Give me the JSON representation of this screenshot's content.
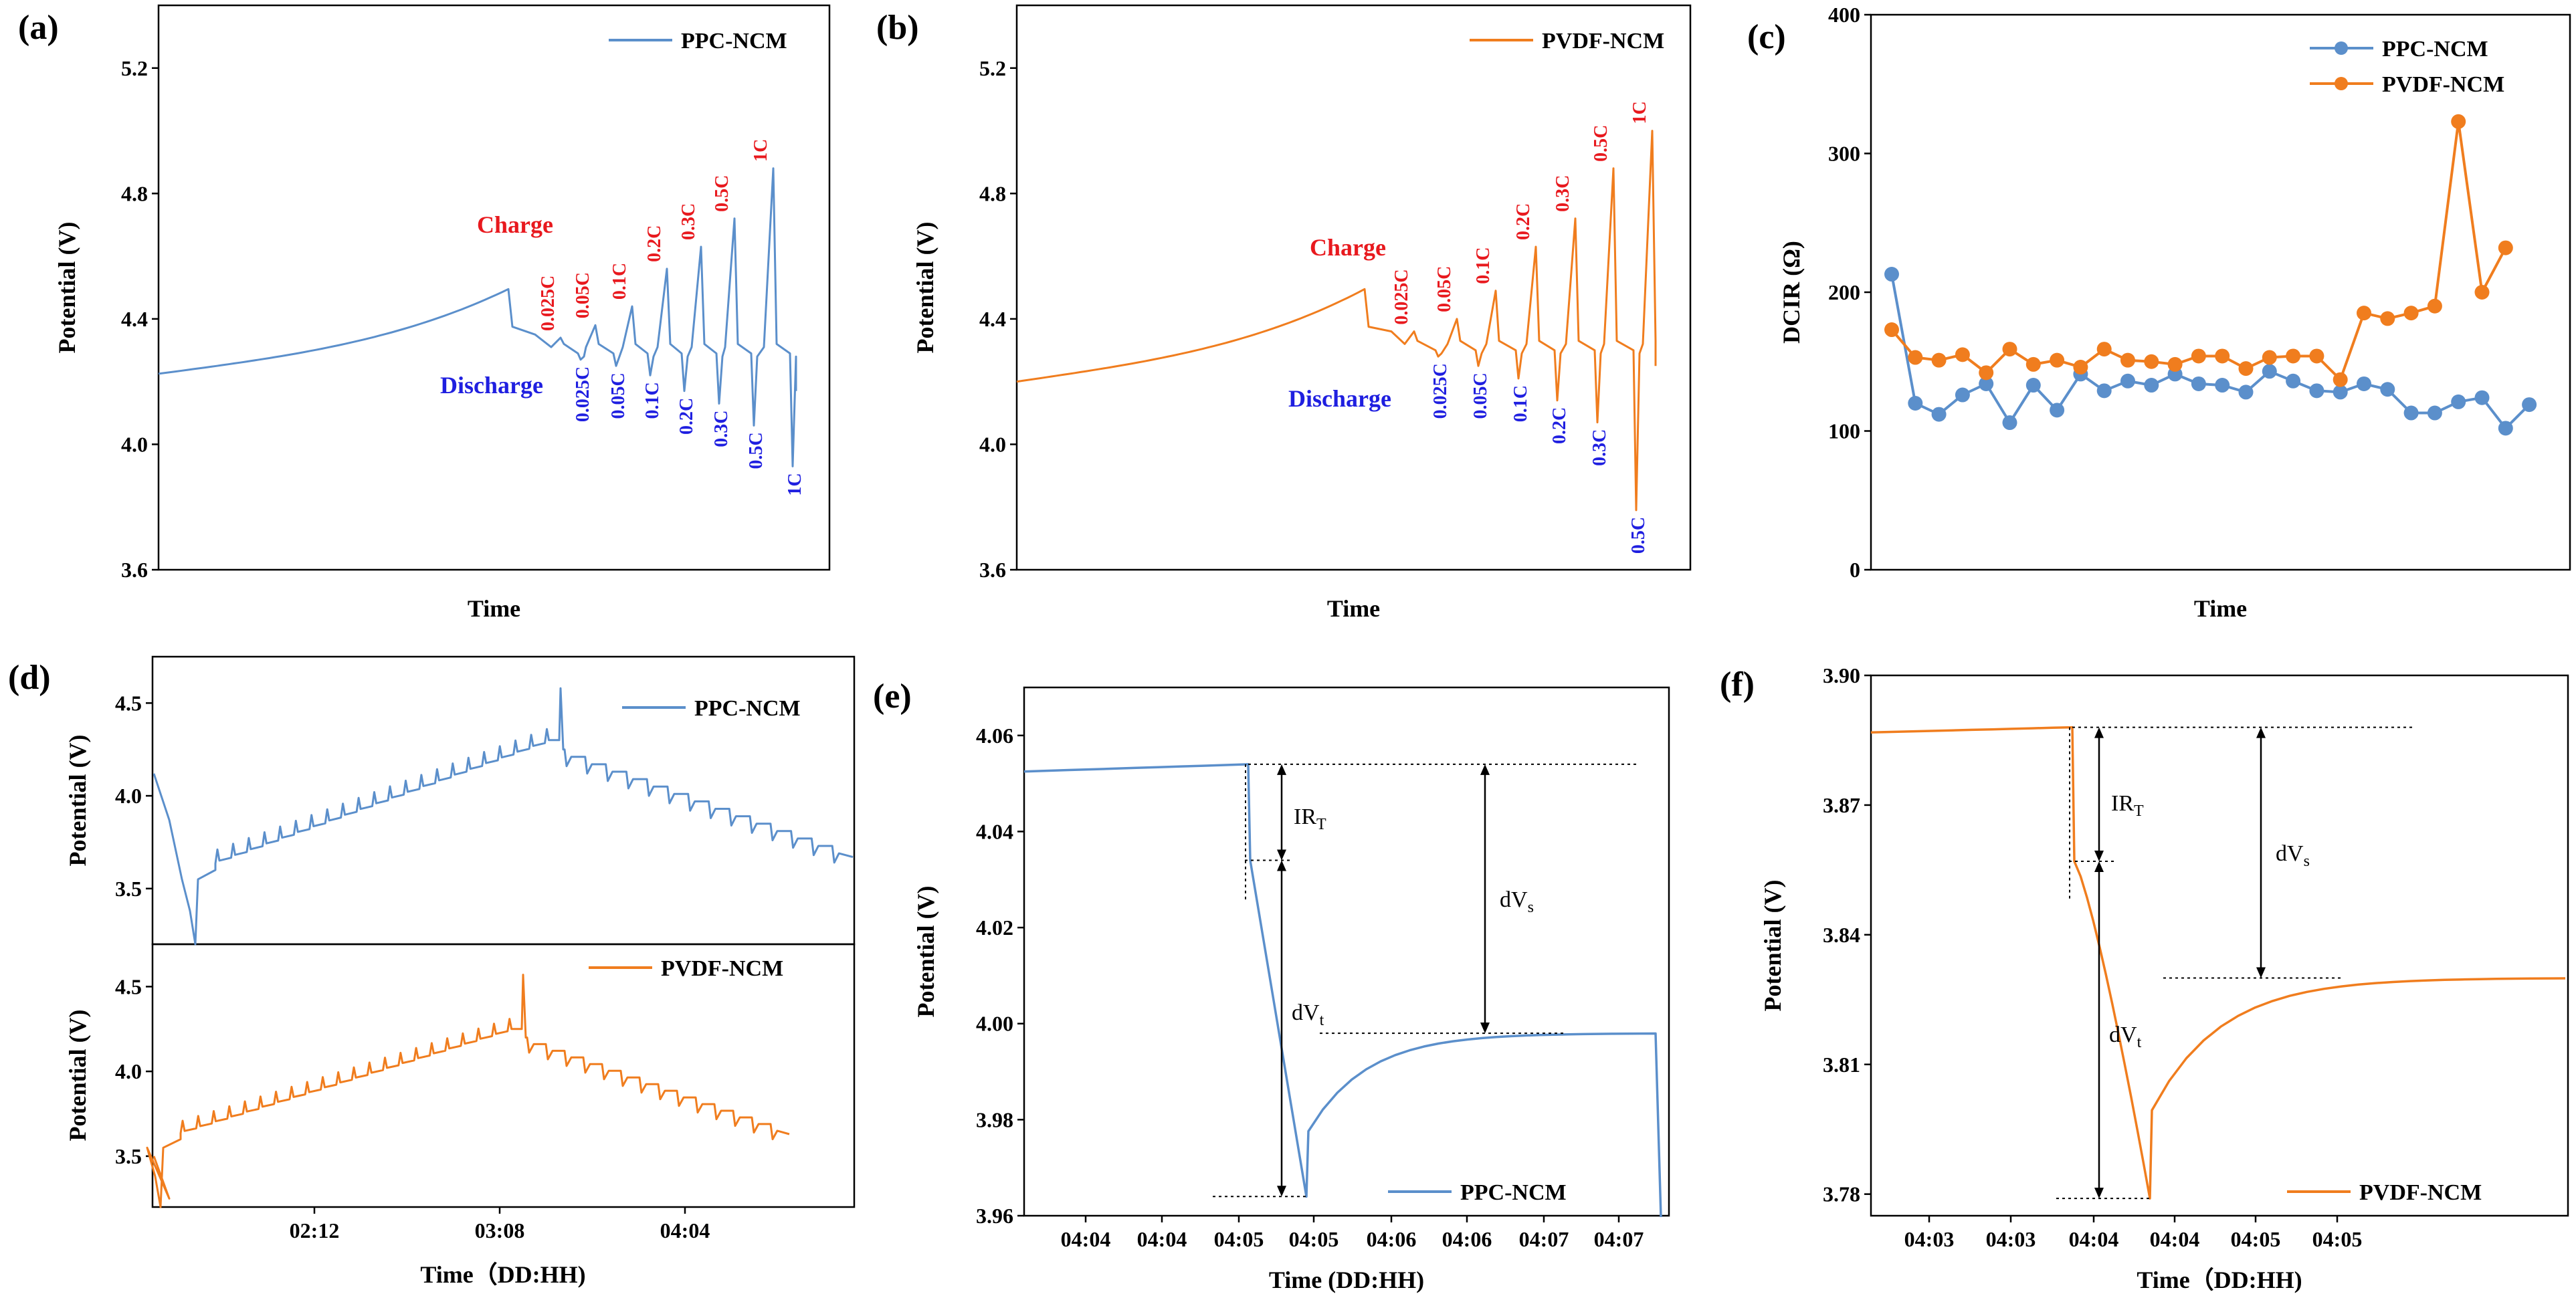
{
  "colors": {
    "blue": "#5b8fcb",
    "orange": "#f07d1e",
    "red": "#e8191e",
    "darkblue": "#1f1fe0"
  },
  "chart_data": [
    {
      "id": "a",
      "type": "line",
      "panel_label": "(a)",
      "xlabel": "Time",
      "ylabel": "Potential (V)",
      "yticks": [
        "3.6",
        "4.0",
        "4.4",
        "4.8",
        "5.2"
      ],
      "ylim": [
        3.6,
        5.4
      ],
      "legend": "PPC-NCM",
      "charge_label": "Charge",
      "discharge_label": "Discharge",
      "charge_rates": [
        "0.025C",
        "0.05C",
        "0.1C",
        "0.2C",
        "0.3C",
        "0.5C",
        "1C"
      ],
      "discharge_rates": [
        "0.025C",
        "0.05C",
        "0.1C",
        "0.2C",
        "0.3C",
        "0.5C",
        "1C"
      ],
      "charge_peaks": [
        4.34,
        4.38,
        4.44,
        4.56,
        4.63,
        4.72,
        4.88
      ],
      "discharge_dips": [
        4.27,
        4.25,
        4.22,
        4.17,
        4.13,
        4.06,
        3.93
      ]
    },
    {
      "id": "b",
      "type": "line",
      "panel_label": "(b)",
      "xlabel": "Time",
      "ylabel": "Potential (V)",
      "yticks": [
        "3.6",
        "4.0",
        "4.4",
        "4.8",
        "5.2"
      ],
      "ylim": [
        3.6,
        5.4
      ],
      "legend": "PVDF-NCM",
      "charge_label": "Charge",
      "discharge_label": "Discharge",
      "charge_rates": [
        "0.025C",
        "0.05C",
        "0.1C",
        "0.2C",
        "0.3C",
        "0.5C",
        "1C"
      ],
      "discharge_rates": [
        "0.025C",
        "0.05C",
        "0.1C",
        "0.2C",
        "0.3C",
        "0.5C"
      ],
      "charge_peaks": [
        4.36,
        4.4,
        4.49,
        4.63,
        4.72,
        4.88,
        5.0
      ],
      "discharge_dips": [
        4.28,
        4.25,
        4.21,
        4.14,
        4.07,
        3.79
      ]
    },
    {
      "id": "c",
      "type": "line",
      "panel_label": "(c)",
      "xlabel": "Time",
      "ylabel": "DCIR (Ω)",
      "yticks": [
        "0",
        "100",
        "200",
        "300",
        "400"
      ],
      "ylim": [
        0,
        400
      ],
      "series": [
        {
          "name": "PPC-NCM",
          "values": [
            213,
            120,
            112,
            126,
            134,
            106,
            133,
            115,
            141,
            129,
            136,
            133,
            141,
            134,
            133,
            128,
            143,
            136,
            129,
            128,
            134,
            130,
            113,
            113,
            121,
            124,
            102,
            119
          ]
        },
        {
          "name": "PVDF-NCM",
          "values": [
            173,
            153,
            151,
            155,
            142,
            159,
            148,
            151,
            146,
            159,
            151,
            150,
            148,
            154,
            154,
            145,
            153,
            154,
            154,
            137,
            185,
            181,
            185,
            190,
            323,
            200,
            232
          ]
        }
      ]
    },
    {
      "id": "d",
      "type": "line",
      "panel_label": "(d)",
      "xlabel": "Time（DD:HH)",
      "ylabel": "Potential (V)",
      "xticks": [
        "02:12",
        "03:08",
        "04:04"
      ],
      "top": {
        "legend": "PPC-NCM",
        "yticks": [
          "3.5",
          "4.0",
          "4.5"
        ],
        "ylim": [
          3.2,
          4.75
        ]
      },
      "bottom": {
        "legend": "PVDF-NCM",
        "yticks": [
          "3.5",
          "4.0",
          "4.5"
        ],
        "ylim": [
          3.2,
          4.75
        ]
      }
    },
    {
      "id": "e",
      "type": "line",
      "panel_label": "(e)",
      "xlabel": "Time (DD:HH)",
      "ylabel": "Potential (V)",
      "yticks": [
        "3.96",
        "3.98",
        "4.00",
        "4.02",
        "4.04",
        "4.06"
      ],
      "ylim": [
        3.96,
        4.07
      ],
      "xticks": [
        "04:04",
        "04:04",
        "04:05",
        "04:05",
        "04:06",
        "04:06",
        "04:07",
        "04:07"
      ],
      "legend": "PPC-NCM",
      "levels": {
        "start": 4.054,
        "ir": 4.034,
        "min": 3.964,
        "relaxed": 3.998
      },
      "annotations": {
        "ir": "IR",
        "ir_sub": "T",
        "dvs": "dV",
        "dvs_sub": "s",
        "dvt": "dV",
        "dvt_sub": "t"
      }
    },
    {
      "id": "f",
      "type": "line",
      "panel_label": "(f)",
      "xlabel": "Time（DD:HH)",
      "ylabel": "Potential (V)",
      "yticks": [
        "3.78",
        "3.81",
        "3.84",
        "3.87",
        "3.90"
      ],
      "ylim": [
        3.775,
        3.9
      ],
      "xticks": [
        "04:03",
        "04:03",
        "04:04",
        "04:04",
        "04:05",
        "04:05"
      ],
      "legend": "PVDF-NCM",
      "levels": {
        "start": 3.888,
        "ir": 3.857,
        "min": 3.779,
        "relaxed": 3.83
      },
      "annotations": {
        "ir": "IR",
        "ir_sub": "T",
        "dvs": "dV",
        "dvs_sub": "s",
        "dvt": "dV",
        "dvt_sub": "t"
      }
    }
  ]
}
